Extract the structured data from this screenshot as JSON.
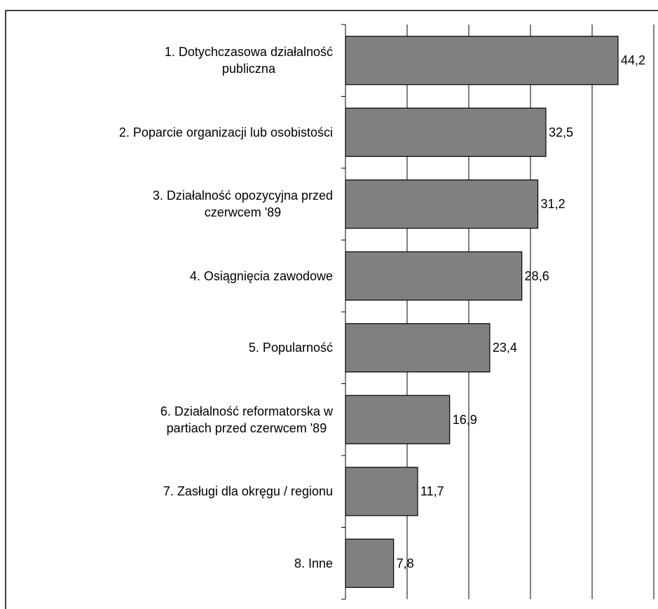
{
  "chart_data": {
    "type": "bar",
    "orientation": "horizontal",
    "categories": [
      "1. Dotychczasowa działalność\npubliczna",
      "2. Poparcie organizacji lub osobistości",
      "3. Działalność opozycyjna przed\nczerwcem '89",
      "4. Osiągnięcia zawodowe",
      "5. Popularność",
      "6. Działalność reformatorska w\npartiach przed czerwcem '89",
      "7. Zasługi dla okręgu / regionu",
      "8. Inne"
    ],
    "values": [
      44.2,
      32.5,
      31.2,
      28.6,
      23.4,
      16.9,
      11.7,
      7.8
    ],
    "value_labels": [
      "44,2",
      "32,5",
      "31,2",
      "28,6",
      "23,4",
      "16,9",
      "11,7",
      "7,8"
    ],
    "color": "#808080",
    "xlim": [
      0,
      50
    ],
    "xticks": [
      0,
      10,
      20,
      30,
      40,
      50
    ],
    "grid": true
  }
}
